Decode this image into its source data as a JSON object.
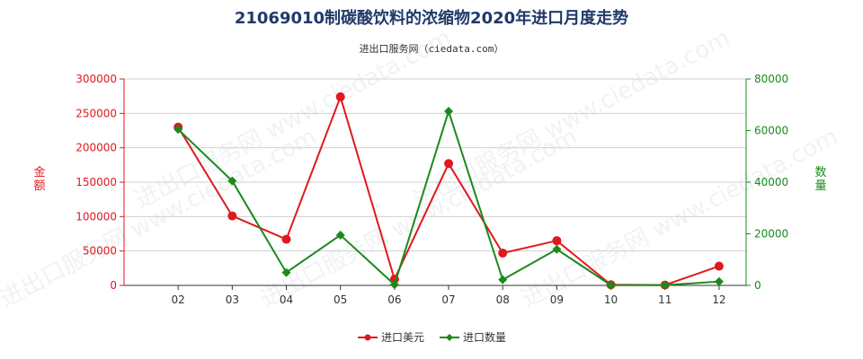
{
  "chart_data": {
    "type": "line",
    "title": "21069010制碳酸饮料的浓缩物2020年进口月度走势",
    "subtitle": "进出口服务网（ciedata.com）",
    "categories": [
      "02",
      "03",
      "04",
      "05",
      "06",
      "07",
      "08",
      "09",
      "10",
      "11",
      "12"
    ],
    "y_left": {
      "label": "金额",
      "range": [
        0,
        300000
      ],
      "ticks": [
        "0",
        "50000",
        "100000",
        "150000",
        "200000",
        "250000",
        "300000"
      ],
      "color": "#e0191e"
    },
    "y_right": {
      "label": "数量",
      "range": [
        0,
        80000
      ],
      "ticks": [
        "0",
        "20000",
        "40000",
        "60000",
        "80000"
      ],
      "color": "#1a8a1a"
    },
    "series": [
      {
        "name": "进口美元",
        "axis": "left",
        "color": "#e0191e",
        "marker": "circle",
        "values": [
          230000,
          101000,
          67000,
          274000,
          9000,
          177000,
          47000,
          65000,
          1000,
          500,
          28000
        ]
      },
      {
        "name": "进口数量",
        "axis": "right",
        "color": "#1a8a1a",
        "marker": "diamond",
        "values": [
          60500,
          40500,
          5000,
          19500,
          300,
          67500,
          2200,
          14000,
          100,
          100,
          1500
        ]
      }
    ],
    "grid": true,
    "legend_position": "bottom-center",
    "watermark": "进出口服务网 www.ciedata.com"
  }
}
